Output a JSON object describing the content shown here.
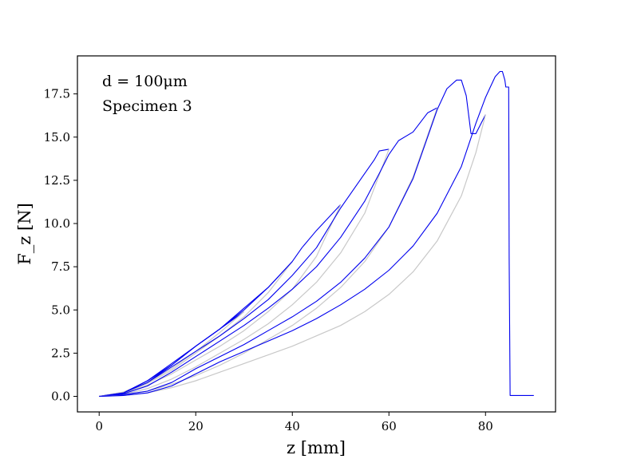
{
  "chart_data": {
    "type": "line",
    "title": "",
    "annotations": [
      "d = 100μm",
      "Specimen 3"
    ],
    "xlabel": "z [mm]",
    "ylabel": "F_z [N]",
    "xlim": [
      -4.5,
      94.5
    ],
    "ylim": [
      -0.9,
      19.7
    ],
    "x_ticks": [
      0,
      20,
      40,
      60,
      80
    ],
    "y_ticks": [
      0.0,
      2.5,
      5.0,
      7.5,
      10.0,
      12.5,
      15.0,
      17.5
    ],
    "x_tick_labels": [
      "0",
      "20",
      "40",
      "60",
      "80"
    ],
    "y_tick_labels": [
      "0.0",
      "2.5",
      "5.0",
      "7.5",
      "10.0",
      "12.5",
      "15.0",
      "17.5"
    ],
    "grid": false,
    "legend": false,
    "colors": {
      "loading": "#0000ee",
      "unloading": "#c8c8c8",
      "axes": "#000000"
    },
    "series": [
      {
        "color": "loading",
        "x": [
          0,
          5,
          10,
          15,
          20,
          25,
          30
        ],
        "y": [
          0,
          0.2,
          0.8,
          1.8,
          2.9,
          3.9,
          4.9
        ]
      },
      {
        "color": "unloading",
        "x": [
          30,
          25,
          20,
          15,
          10,
          5,
          0
        ],
        "y": [
          4.9,
          3.7,
          2.6,
          1.6,
          0.8,
          0.25,
          0
        ]
      },
      {
        "color": "loading",
        "x": [
          0,
          5,
          10,
          15,
          20,
          25,
          30,
          35,
          40
        ],
        "y": [
          0,
          0.2,
          0.9,
          1.8,
          2.9,
          3.9,
          5.0,
          6.3,
          7.8
        ]
      },
      {
        "color": "unloading",
        "x": [
          40,
          35,
          30,
          25,
          20,
          15,
          10,
          5,
          0
        ],
        "y": [
          7.8,
          6.0,
          4.6,
          3.5,
          2.5,
          1.5,
          0.75,
          0.22,
          0
        ]
      },
      {
        "color": "loading",
        "x": [
          0,
          5,
          10,
          15,
          20,
          25,
          30,
          35,
          40,
          42,
          45,
          48,
          50
        ],
        "y": [
          0,
          0.2,
          0.9,
          1.9,
          2.9,
          3.9,
          5.1,
          6.3,
          7.8,
          8.6,
          9.6,
          10.5,
          11.1
        ]
      },
      {
        "color": "unloading",
        "x": [
          50,
          45,
          40,
          35,
          30,
          25,
          20,
          15,
          10,
          5,
          0
        ],
        "y": [
          11.1,
          8.1,
          6.2,
          4.9,
          3.8,
          2.9,
          2.1,
          1.3,
          0.65,
          0.2,
          0
        ]
      },
      {
        "color": "loading",
        "x": [
          0,
          5,
          10,
          15,
          20,
          25,
          30,
          35,
          40,
          45,
          50,
          52,
          55,
          57,
          58,
          60
        ],
        "y": [
          0,
          0.2,
          0.8,
          1.7,
          2.6,
          3.5,
          4.5,
          5.6,
          7.0,
          8.6,
          10.9,
          11.7,
          12.9,
          13.7,
          14.2,
          14.3
        ]
      },
      {
        "color": "unloading",
        "x": [
          60,
          55,
          50,
          45,
          40,
          35,
          30,
          25,
          20,
          15,
          10,
          5,
          0
        ],
        "y": [
          14.3,
          10.6,
          8.3,
          6.6,
          5.3,
          4.2,
          3.3,
          2.5,
          1.7,
          1.0,
          0.45,
          0.12,
          0
        ]
      },
      {
        "color": "loading",
        "x": [
          0,
          5,
          10,
          15,
          20,
          25,
          30,
          35,
          40,
          45,
          50,
          55,
          58,
          60,
          62,
          65,
          68,
          70
        ],
        "y": [
          0,
          0.15,
          0.6,
          1.4,
          2.3,
          3.2,
          4.1,
          5.1,
          6.2,
          7.5,
          9.2,
          11.3,
          12.9,
          14.0,
          14.8,
          15.3,
          16.4,
          16.7
        ]
      },
      {
        "color": "unloading",
        "x": [
          70,
          65,
          60,
          55,
          50,
          45,
          40,
          35,
          30,
          25,
          20,
          15,
          10,
          5,
          0
        ],
        "y": [
          16.7,
          12.7,
          9.8,
          7.8,
          6.3,
          5.1,
          4.1,
          3.3,
          2.5,
          1.8,
          1.2,
          0.7,
          0.3,
          0.08,
          0
        ]
      },
      {
        "color": "loading",
        "x": [
          0,
          5,
          10,
          15,
          20,
          25,
          30,
          35,
          40,
          45,
          50,
          55,
          60,
          65,
          68,
          70,
          72,
          74,
          75,
          76,
          77,
          78,
          80
        ],
        "y": [
          0,
          0.1,
          0.3,
          0.8,
          1.6,
          2.3,
          3.0,
          3.8,
          4.6,
          5.5,
          6.6,
          8.0,
          9.8,
          12.6,
          15.0,
          16.6,
          17.8,
          18.3,
          18.3,
          17.4,
          15.2,
          15.2,
          16.3
        ]
      },
      {
        "color": "unloading",
        "x": [
          80,
          78,
          75,
          70,
          65,
          60,
          55,
          50,
          45,
          40,
          35,
          30,
          25,
          20,
          15,
          10,
          5,
          0
        ],
        "y": [
          16.3,
          14.1,
          11.6,
          9.0,
          7.2,
          5.9,
          4.9,
          4.1,
          3.5,
          2.9,
          2.4,
          1.9,
          1.4,
          0.9,
          0.5,
          0.2,
          0.05,
          0
        ]
      },
      {
        "color": "loading",
        "x": [
          0,
          5,
          10,
          15,
          20,
          25,
          30,
          35,
          40,
          45,
          50,
          55,
          60,
          65,
          70,
          75,
          78,
          80,
          81,
          82,
          83,
          83.5,
          84,
          84.2,
          84.8,
          84.9,
          85.1,
          90
        ],
        "y": [
          0,
          0.05,
          0.2,
          0.6,
          1.3,
          2.0,
          2.6,
          3.2,
          3.8,
          4.5,
          5.3,
          6.2,
          7.3,
          8.7,
          10.6,
          13.3,
          15.8,
          17.3,
          17.9,
          18.5,
          18.8,
          18.8,
          18.3,
          17.9,
          17.9,
          8.0,
          0.05,
          0.05
        ]
      }
    ]
  }
}
